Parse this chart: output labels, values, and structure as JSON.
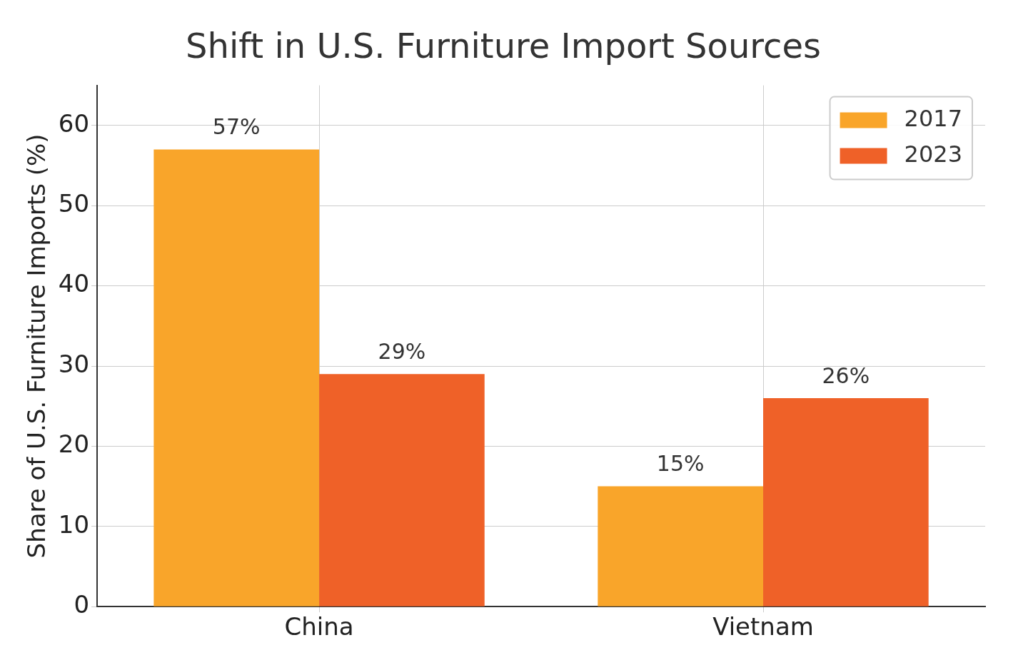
{
  "chart_data": {
    "type": "bar",
    "title": "Shift in U.S. Furniture Import Sources",
    "ylabel": "Share of U.S. Furniture Imports (%)",
    "categories": [
      "China",
      "Vietnam"
    ],
    "series": [
      {
        "name": "2017",
        "color": "#f9a52a",
        "values": [
          57,
          15
        ],
        "value_labels": [
          "57%",
          "15%"
        ]
      },
      {
        "name": "2023",
        "color": "#ef6128",
        "values": [
          29,
          26
        ],
        "value_labels": [
          "29%",
          "26%"
        ]
      }
    ],
    "ylim": [
      0,
      65
    ],
    "yticks": [
      0,
      10,
      20,
      30,
      40,
      50,
      60
    ],
    "grid": true,
    "legend": "top right"
  }
}
